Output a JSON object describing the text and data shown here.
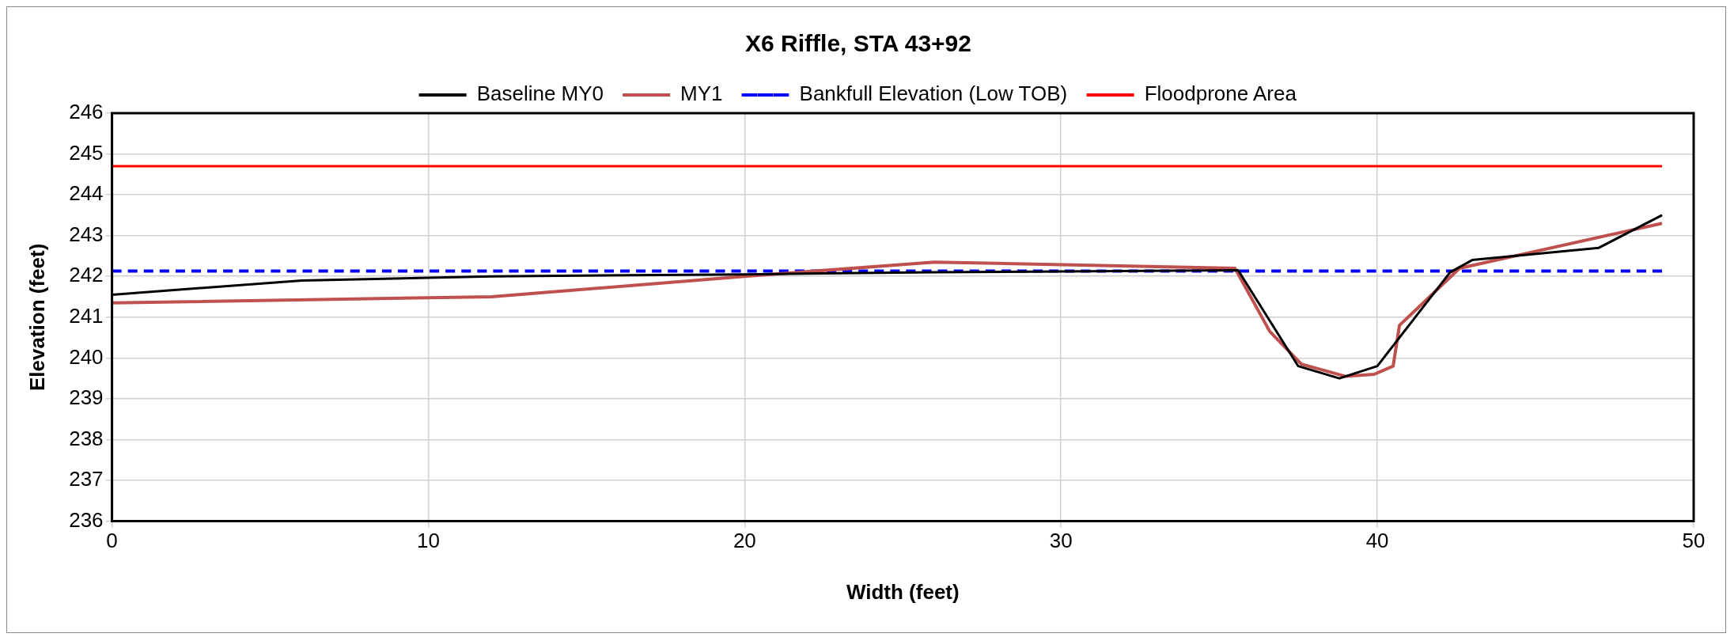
{
  "chart_data": {
    "type": "line",
    "title": "X6 Riffle, STA 43+92",
    "xlabel": "Width (feet)",
    "ylabel": "Elevation (feet)",
    "series": [
      {
        "name": "Baseline MY0",
        "color": "#000000",
        "x": [
          0,
          6,
          12,
          20,
          26,
          35.6,
          37.5,
          38.8,
          40,
          42.3,
          43,
          47,
          49
        ],
        "values": [
          241.55,
          241.9,
          242.0,
          242.05,
          242.1,
          242.15,
          239.8,
          239.5,
          239.8,
          242.1,
          242.4,
          242.7,
          243.5
        ]
      },
      {
        "name": "MY1",
        "color": "#c0504d",
        "x": [
          0,
          12,
          20,
          26,
          35.5,
          36.6,
          37.6,
          39,
          39.9,
          40.5,
          40.7,
          42.6,
          49
        ],
        "values": [
          241.35,
          241.5,
          242.0,
          242.35,
          242.2,
          240.65,
          239.85,
          239.55,
          239.6,
          239.8,
          240.8,
          242.2,
          243.3
        ]
      },
      {
        "name": "Bankfull Elevation (Low TOB)",
        "color": "#0000ff",
        "line_style": "dashed",
        "x": [
          0,
          49
        ],
        "values": [
          242.13,
          242.13
        ]
      },
      {
        "name": "Floodprone Area",
        "color": "#ff0000",
        "x": [
          0,
          49
        ],
        "values": [
          244.7,
          244.7
        ]
      }
    ],
    "xlim": [
      0,
      50
    ],
    "xticks": [
      0,
      10,
      20,
      30,
      40,
      50
    ],
    "ylim": [
      236,
      246
    ],
    "yticks": [
      236,
      237,
      238,
      239,
      240,
      241,
      242,
      243,
      244,
      245,
      246
    ],
    "grid": true,
    "legend": "top",
    "marker": "none",
    "line_style": "solid"
  }
}
